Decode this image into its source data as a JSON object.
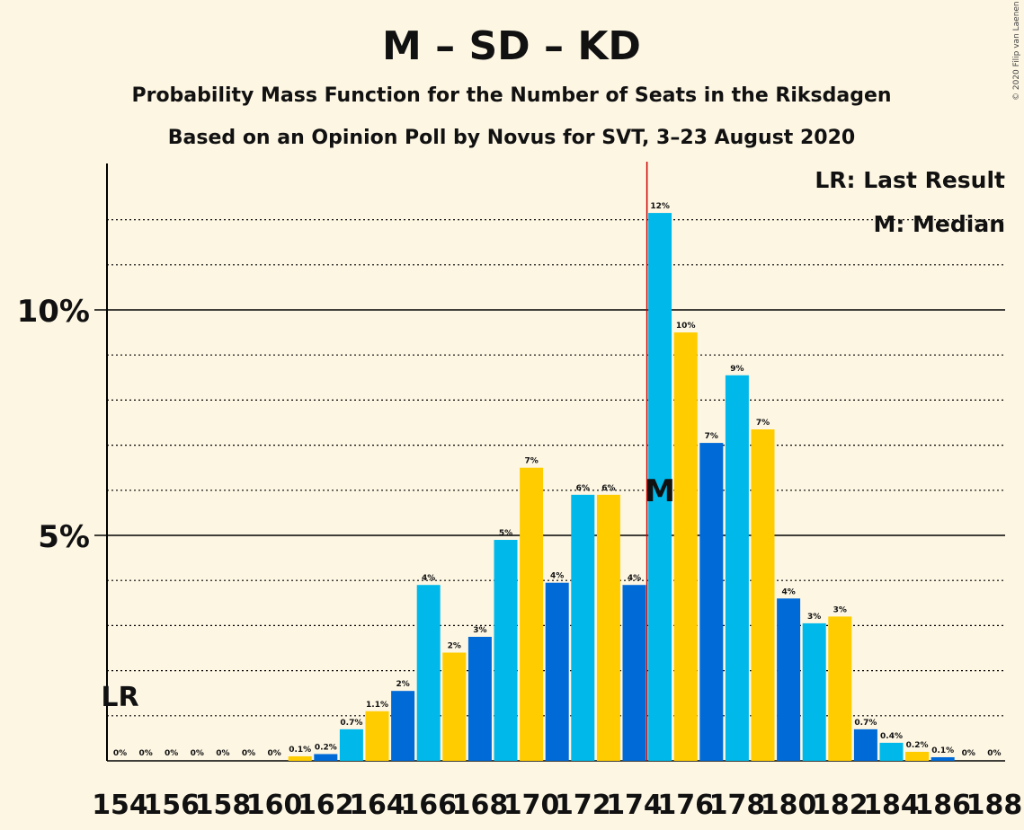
{
  "chart_data": {
    "type": "bar",
    "title": "M – SD – KD",
    "subtitle1": "Probability Mass Function for the Number of Seats in the Riksdagen",
    "subtitle2": "Based on an Opinion Poll by Novus for SVT, 3–23 August 2020",
    "copyright": "© 2020 Filip van Laenen",
    "legend": {
      "last_result": "LR: Last Result",
      "median": "M: Median",
      "placement": "top-right"
    },
    "last_result_marker": "LR",
    "last_result_seat": 154,
    "median_marker": "M",
    "median_seat": 175,
    "xlim": [
      154,
      188
    ],
    "ylim": [
      0,
      13.2
    ],
    "y_major_ticks": [
      5,
      10
    ],
    "y_tick_labels": [
      "5%",
      "10%"
    ],
    "x_tick_labels": [
      "154",
      "156",
      "158",
      "160",
      "162",
      "164",
      "166",
      "168",
      "170",
      "172",
      "174",
      "176",
      "178",
      "180",
      "182",
      "184",
      "186",
      "188"
    ],
    "seats": [
      154,
      155,
      156,
      157,
      158,
      159,
      160,
      161,
      162,
      163,
      164,
      165,
      166,
      167,
      168,
      169,
      170,
      171,
      172,
      173,
      174,
      175,
      176,
      177,
      178,
      179,
      180,
      181,
      182,
      183,
      184,
      185,
      186,
      187,
      188
    ],
    "values": [
      0,
      0,
      0,
      0,
      0,
      0,
      0,
      0.1,
      0.15,
      0.7,
      1.1,
      1.55,
      3.9,
      2.4,
      2.75,
      4.9,
      6.5,
      3.95,
      5.9,
      5.9,
      3.9,
      12.15,
      9.5,
      7.05,
      8.55,
      7.35,
      3.6,
      3.05,
      3.2,
      0.7,
      0.4,
      0.2,
      0.08,
      0,
      0
    ],
    "labels": [
      "0%",
      "0%",
      "0%",
      "0%",
      "0%",
      "0%",
      "0%",
      "0.1%",
      "0.2%",
      "0.7%",
      "1.1%",
      "2%",
      "4%",
      "2%",
      "3%",
      "5%",
      "7%",
      "4%",
      "6%",
      "6%",
      "4%",
      "12%",
      "10%",
      "7%",
      "9%",
      "7%",
      "4%",
      "3%",
      "3%",
      "0.7%",
      "0.4%",
      "0.2%",
      "0.1%",
      "0%",
      "0%"
    ],
    "colors": {
      "M": "#006ad7",
      "SD": "#00b9ea",
      "KD": "#ffcc00",
      "median_line": "#cc0000",
      "background": "#fdf6e3",
      "axis": "#000000"
    },
    "color_cycle": [
      "M",
      "SD",
      "KD"
    ],
    "grid": true
  }
}
